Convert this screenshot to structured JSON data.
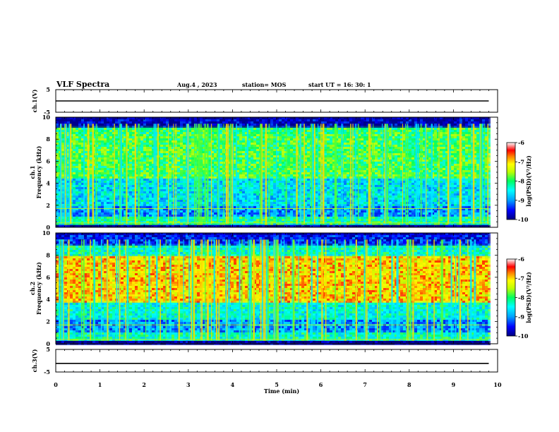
{
  "header": {
    "title": "VLF Spectra",
    "date": "Aug.4  , 2023",
    "station": "station= MOS",
    "start_ut": "start  UT  =   16: 30: 1"
  },
  "chart_data": [
    {
      "type": "line",
      "panel": "ch1-waveform",
      "ylabel": "ch.1(V)",
      "ylim": [
        -5,
        5
      ],
      "yticks": [
        "5",
        "-5"
      ],
      "xlim": [
        0,
        10
      ],
      "series": [
        {
          "values": [
            0.0
          ]
        }
      ]
    },
    {
      "type": "heatmap",
      "panel": "ch1-spectrogram",
      "ylabel": "ch.1\nFrequency (kHz)",
      "ylim": [
        0,
        10
      ],
      "yticks": [
        "0",
        "2",
        "4",
        "6",
        "8",
        "10"
      ],
      "xlim": [
        0,
        10
      ],
      "colorbar": {
        "label": "log(PSD)(V²/Hz)",
        "ticks": [
          "-6",
          "-7",
          "-8",
          "-9",
          "-10"
        ],
        "range": [
          -10,
          -6
        ]
      },
      "bands": [
        {
          "f0": 0.0,
          "f1": 0.3,
          "level": -10
        },
        {
          "f0": 0.3,
          "f1": 1.0,
          "level": -8.2
        },
        {
          "f0": 1.0,
          "f1": 2.0,
          "level": -9.0
        },
        {
          "f0": 2.0,
          "f1": 4.5,
          "level": -8.6
        },
        {
          "f0": 4.5,
          "f1": 8.5,
          "level": -7.9
        },
        {
          "f0": 8.5,
          "f1": 9.2,
          "level": -8.0
        },
        {
          "f0": 9.2,
          "f1": 10.0,
          "level": -9.8
        }
      ]
    },
    {
      "type": "heatmap",
      "panel": "ch2-spectrogram",
      "ylabel": "ch.2\nFrequency (kHz)",
      "ylim": [
        0,
        10
      ],
      "yticks": [
        "0",
        "2",
        "4",
        "6",
        "8",
        "10"
      ],
      "xlim": [
        0,
        10
      ],
      "colorbar": {
        "label": "log(PSD)(V²/Hz)",
        "ticks": [
          "-6",
          "-7",
          "-8",
          "-9",
          "-10"
        ],
        "range": [
          -10,
          -6
        ]
      },
      "bands": [
        {
          "f0": 0.0,
          "f1": 0.3,
          "level": -10
        },
        {
          "f0": 0.3,
          "f1": 1.2,
          "level": -8.3
        },
        {
          "f0": 1.2,
          "f1": 2.2,
          "level": -9.0
        },
        {
          "f0": 2.2,
          "f1": 3.8,
          "level": -8.4
        },
        {
          "f0": 3.8,
          "f1": 8.0,
          "level": -7.0
        },
        {
          "f0": 8.0,
          "f1": 9.0,
          "level": -8.3
        },
        {
          "f0": 9.0,
          "f1": 10.0,
          "level": -9.5
        }
      ]
    },
    {
      "type": "line",
      "panel": "ch3-waveform",
      "ylabel": "ch.3(V)",
      "ylim": [
        -5,
        5
      ],
      "yticks": [
        "5",
        "-5"
      ],
      "xlim": [
        0,
        10
      ],
      "xlabel": "Time  (min)",
      "xticks": [
        "0",
        "1",
        "2",
        "3",
        "4",
        "5",
        "6",
        "7",
        "8",
        "9",
        "10"
      ],
      "series": [
        {
          "values": [
            -1.2
          ]
        }
      ]
    }
  ],
  "colors": {
    "axis": "#000000",
    "background": "#ffffff"
  }
}
